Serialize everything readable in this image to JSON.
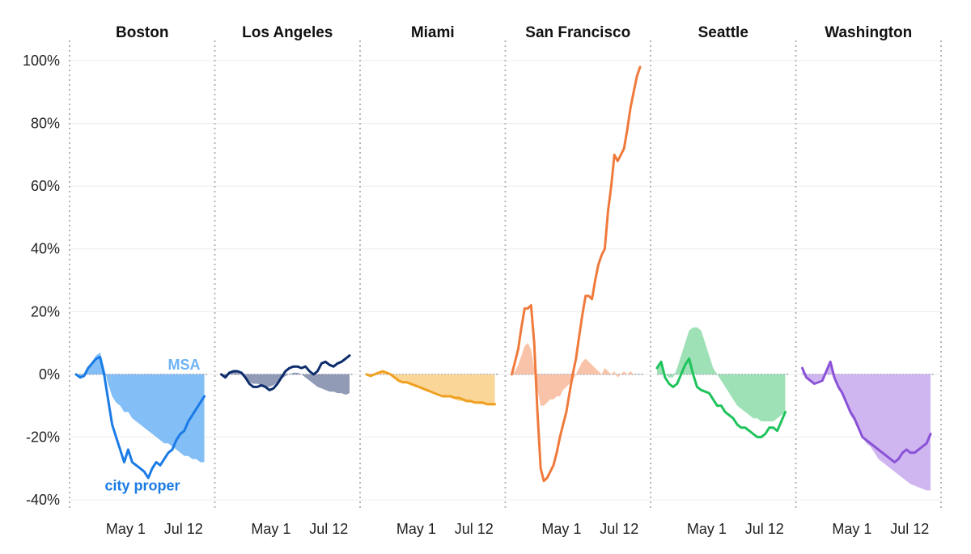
{
  "chart_data": {
    "type": "area",
    "title": "",
    "xlabel": "",
    "ylabel": "",
    "ylim": [
      -40,
      100
    ],
    "y_ticks": [
      "100%",
      "80%",
      "60%",
      "40%",
      "20%",
      "0%",
      "-20%",
      "-40%"
    ],
    "y_tick_values": [
      100,
      80,
      60,
      40,
      20,
      0,
      -20,
      -40
    ],
    "x_ticks": [
      "May 1",
      "Jul 12"
    ],
    "x_tick_values": [
      62,
      134
    ],
    "xlim": [
      0,
      165
    ],
    "grid": true,
    "annotations": [
      {
        "panel": "Boston",
        "text": "MSA",
        "series": "MSA"
      },
      {
        "panel": "Boston",
        "text": "city proper",
        "series": "city proper"
      }
    ],
    "panels": [
      {
        "name": "Boston",
        "color": "#1a7be6",
        "fill_color": "#6db3f5",
        "series": [
          {
            "name": "city proper",
            "x": [
              0,
              5,
              10,
              15,
              20,
              25,
              30,
              35,
              40,
              45,
              50,
              55,
              60,
              65,
              70,
              75,
              80,
              85,
              90,
              95,
              100,
              105,
              110,
              115,
              120,
              125,
              130,
              135,
              140,
              145,
              150,
              155,
              160
            ],
            "values": [
              0,
              -1,
              -0.5,
              2,
              3.5,
              5,
              5.5,
              0,
              -8,
              -16,
              -20,
              -24,
              -28,
              -24,
              -28,
              -29,
              -30,
              -31,
              -33,
              -30,
              -28,
              -29,
              -27,
              -25,
              -24,
              -21,
              -19,
              -18,
              -15,
              -13,
              -11,
              -9,
              -7
            ]
          },
          {
            "name": "MSA",
            "x": [
              0,
              5,
              10,
              15,
              20,
              25,
              30,
              35,
              40,
              45,
              50,
              55,
              60,
              65,
              70,
              75,
              80,
              85,
              90,
              95,
              100,
              105,
              110,
              115,
              120,
              125,
              130,
              135,
              140,
              145,
              150,
              155,
              160
            ],
            "values": [
              0,
              -1,
              -0.5,
              2,
              4,
              6,
              7,
              2,
              -3,
              -7,
              -9,
              -10,
              -12,
              -12,
              -14,
              -15,
              -16,
              -17,
              -18,
              -19,
              -20,
              -21,
              -22,
              -22,
              -23,
              -24,
              -25,
              -26,
              -26,
              -27,
              -27,
              -28,
              -28
            ]
          }
        ]
      },
      {
        "name": "Los Angeles",
        "color": "#0d2c6b",
        "fill_color": "#7e8aa8",
        "series": [
          {
            "name": "city proper",
            "x": [
              0,
              5,
              10,
              15,
              20,
              25,
              30,
              35,
              40,
              45,
              50,
              55,
              60,
              65,
              70,
              75,
              80,
              85,
              90,
              95,
              100,
              105,
              110,
              115,
              120,
              125,
              130,
              135,
              140,
              145,
              150,
              155,
              160
            ],
            "values": [
              0,
              -1,
              0.5,
              1,
              1,
              0.5,
              -1,
              -3,
              -4,
              -4,
              -3.5,
              -4,
              -5,
              -4.5,
              -3,
              -1,
              1,
              2,
              2.5,
              2.5,
              2,
              2.5,
              1,
              0,
              1,
              3.5,
              4,
              3,
              2.5,
              3.5,
              4,
              5,
              6
            ]
          },
          {
            "name": "MSA",
            "x": [
              0,
              5,
              10,
              15,
              20,
              25,
              30,
              35,
              40,
              45,
              50,
              55,
              60,
              65,
              70,
              75,
              80,
              85,
              90,
              95,
              100,
              105,
              110,
              115,
              120,
              125,
              130,
              135,
              140,
              145,
              150,
              155,
              160
            ],
            "values": [
              0,
              -1,
              0.5,
              1,
              0.5,
              0,
              -1.5,
              -2.5,
              -3,
              -3,
              -3.5,
              -4,
              -4,
              -3.5,
              -2.5,
              -1.5,
              -0.5,
              0,
              0.5,
              0.5,
              0,
              -1,
              -2,
              -3,
              -4,
              -4.5,
              -5,
              -5.5,
              -5.5,
              -6,
              -6,
              -6.5,
              -6
            ]
          }
        ]
      },
      {
        "name": "Miami",
        "color": "#f0a020",
        "fill_color": "#f9cf86",
        "series": [
          {
            "name": "city proper",
            "x": [
              0,
              5,
              10,
              15,
              20,
              25,
              30,
              35,
              40,
              45,
              50,
              55,
              60,
              65,
              70,
              75,
              80,
              85,
              90,
              95,
              100,
              105,
              110,
              115,
              120,
              125,
              130,
              135,
              140,
              145,
              150,
              155,
              160
            ],
            "values": [
              0,
              -0.5,
              0,
              0.5,
              1,
              0.5,
              0,
              -1,
              -2,
              -2.5,
              -2.5,
              -3,
              -3.5,
              -4,
              -4.5,
              -5,
              -5.5,
              -6,
              -6.5,
              -7,
              -7,
              -7,
              -7.5,
              -7.5,
              -8,
              -8.5,
              -8.5,
              -9,
              -9,
              -9,
              -9.5,
              -9.5,
              -9.5
            ]
          },
          {
            "name": "MSA",
            "x": [
              0,
              5,
              10,
              15,
              20,
              25,
              30,
              35,
              40,
              45,
              50,
              55,
              60,
              65,
              70,
              75,
              80,
              85,
              90,
              95,
              100,
              105,
              110,
              115,
              120,
              125,
              130,
              135,
              140,
              145,
              150,
              155,
              160
            ],
            "values": [
              0,
              -0.5,
              0,
              0.5,
              1,
              0.5,
              -0.5,
              -1.5,
              -2,
              -2.5,
              -3,
              -3.5,
              -4,
              -4,
              -4.5,
              -5,
              -5,
              -5.5,
              -6,
              -6.5,
              -7,
              -7.5,
              -8,
              -8.5,
              -8.5,
              -9,
              -9,
              -9,
              -9.5,
              -9.5,
              -9.5,
              -10,
              -10
            ]
          }
        ]
      },
      {
        "name": "San Francisco",
        "color": "#f07a3c",
        "fill_color": "#f8b89a",
        "series": [
          {
            "name": "city proper",
            "x": [
              0,
              4,
              8,
              12,
              16,
              20,
              24,
              28,
              32,
              36,
              40,
              44,
              48,
              52,
              56,
              60,
              64,
              68,
              72,
              76,
              80,
              84,
              88,
              92,
              96,
              100,
              104,
              108,
              112,
              116,
              120,
              124,
              128,
              132,
              136,
              140,
              144,
              148,
              152,
              156,
              160
            ],
            "values": [
              0,
              4,
              8,
              15,
              21,
              21,
              22,
              10,
              -12,
              -30,
              -34,
              -33,
              -31,
              -29,
              -25,
              -20,
              -16,
              -12,
              -6,
              0,
              5,
              12,
              19,
              25,
              25,
              24,
              30,
              35,
              38,
              40,
              52,
              60,
              70,
              68,
              70,
              72,
              78,
              85,
              90,
              95,
              98
            ]
          },
          {
            "name": "MSA",
            "x": [
              0,
              4,
              8,
              12,
              16,
              20,
              24,
              28,
              32,
              36,
              40,
              44,
              48,
              52,
              56,
              60,
              64,
              68,
              72,
              76,
              80,
              84,
              88,
              92,
              96,
              100,
              104,
              108,
              112,
              116,
              120,
              124,
              128,
              132,
              136,
              140,
              144,
              148,
              152,
              156,
              160
            ],
            "values": [
              0,
              1,
              3,
              6,
              9,
              10,
              8,
              2,
              -5,
              -10,
              -10,
              -9,
              -8,
              -8,
              -7,
              -7,
              -5,
              -4,
              -3,
              -2,
              0,
              2,
              4,
              5,
              4,
              3,
              2,
              1,
              0,
              2,
              1,
              0,
              1,
              -1,
              0,
              1,
              0,
              1,
              0,
              0,
              0
            ]
          }
        ]
      },
      {
        "name": "Seattle",
        "color": "#1fc35c",
        "fill_color": "#8edcaa",
        "series": [
          {
            "name": "city proper",
            "x": [
              0,
              5,
              10,
              15,
              20,
              25,
              30,
              35,
              40,
              45,
              50,
              55,
              60,
              65,
              70,
              75,
              80,
              85,
              90,
              95,
              100,
              105,
              110,
              115,
              120,
              125,
              130,
              135,
              140,
              145,
              150,
              155,
              160
            ],
            "values": [
              2,
              4,
              -1,
              -3,
              -4,
              -3,
              0,
              3,
              5,
              0,
              -4,
              -5,
              -5.5,
              -6,
              -8,
              -10,
              -10,
              -12,
              -13,
              -14,
              -16,
              -17,
              -17,
              -18,
              -19,
              -20,
              -20,
              -19,
              -17,
              -17,
              -18,
              -15,
              -12
            ]
          },
          {
            "name": "MSA",
            "x": [
              0,
              5,
              10,
              15,
              20,
              25,
              30,
              35,
              40,
              45,
              50,
              55,
              60,
              65,
              70,
              75,
              80,
              85,
              90,
              95,
              100,
              105,
              110,
              115,
              120,
              125,
              130,
              135,
              140,
              145,
              150,
              155,
              160
            ],
            "values": [
              2,
              4,
              0,
              -1,
              -1,
              2,
              6,
              10,
              14,
              15,
              15,
              14,
              10,
              6,
              2,
              0,
              -2,
              -4,
              -6,
              -8,
              -10,
              -11,
              -12,
              -13,
              -14,
              -14,
              -15,
              -15,
              -15,
              -15,
              -14,
              -13,
              -12
            ]
          }
        ]
      },
      {
        "name": "Washington",
        "color": "#8a52d6",
        "fill_color": "#c8a9ee",
        "series": [
          {
            "name": "city proper",
            "x": [
              0,
              5,
              10,
              15,
              20,
              25,
              30,
              35,
              40,
              45,
              50,
              55,
              60,
              65,
              70,
              75,
              80,
              85,
              90,
              95,
              100,
              105,
              110,
              115,
              120,
              125,
              130,
              135,
              140,
              145,
              150,
              155,
              160
            ],
            "values": [
              2,
              -1,
              -2,
              -3,
              -2.5,
              -2,
              1,
              4,
              -1,
              -4,
              -6,
              -9,
              -12,
              -14,
              -17,
              -20,
              -21,
              -22,
              -23,
              -24,
              -25,
              -26,
              -27,
              -28,
              -27,
              -25,
              -24,
              -25,
              -25,
              -24,
              -23,
              -22,
              -19
            ]
          },
          {
            "name": "MSA",
            "x": [
              0,
              5,
              10,
              15,
              20,
              25,
              30,
              35,
              40,
              45,
              50,
              55,
              60,
              65,
              70,
              75,
              80,
              85,
              90,
              95,
              100,
              105,
              110,
              115,
              120,
              125,
              130,
              135,
              140,
              145,
              150,
              155,
              160
            ],
            "values": [
              1.5,
              -1,
              -2,
              -2.5,
              -2,
              -1.5,
              1,
              3,
              -1,
              -4,
              -7,
              -10,
              -13,
              -15,
              -18,
              -20,
              -22,
              -23,
              -25,
              -27,
              -28,
              -29,
              -30,
              -31,
              -32,
              -33,
              -34,
              -35,
              -35.5,
              -36,
              -36.5,
              -37,
              -37
            ]
          }
        ]
      }
    ]
  }
}
